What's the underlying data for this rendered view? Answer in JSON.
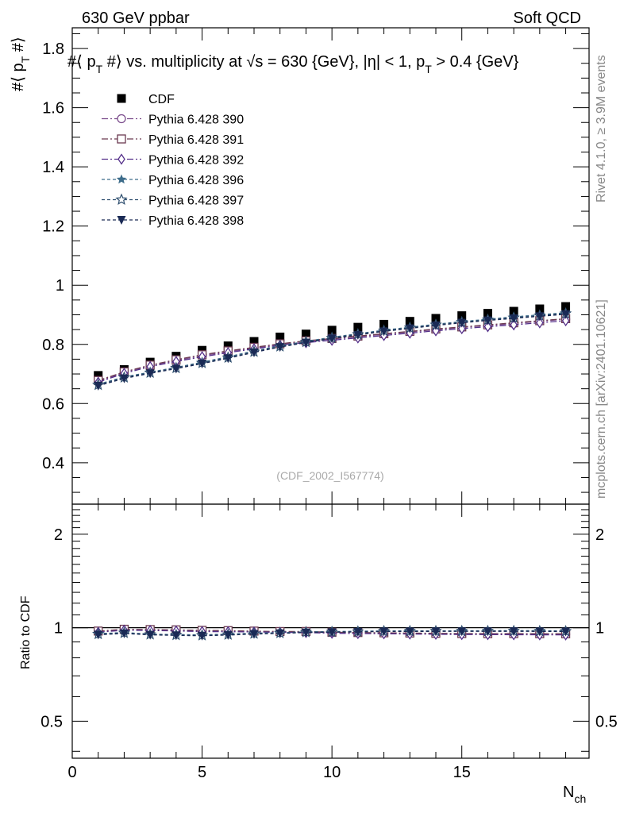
{
  "header": {
    "left": "630 GeV ppbar",
    "right": "Soft QCD"
  },
  "side_text": {
    "rivet": "Rivet 4.1.0, ≥ 3.9M events",
    "mcplots": "mcplots.cern.ch [arXiv:2401.10621]"
  },
  "chart_data": [
    {
      "panel": "main",
      "type": "scatter",
      "title_parts": {
        "a": "#⟨ p",
        "a_sub": "T",
        "b": " #⟩ vs. multiplicity at ",
        "sqrt": "√",
        "c": "s = 630 {GeV}, |η| < 1, p",
        "c_sub": "T",
        "d": " > 0.4 {GeV}"
      },
      "ylabel_parts": {
        "a": "#⟨ p",
        "sub": "T",
        "b": " #⟩"
      },
      "xlim": [
        0,
        19.9
      ],
      "ylim": [
        0.26,
        1.87
      ],
      "yticks": [
        0.4,
        0.6,
        0.8,
        1.0,
        1.2,
        1.4,
        1.6,
        1.8
      ],
      "ytick_labels": [
        "0.4",
        "0.6",
        "0.8",
        "1",
        "1.2",
        "1.4",
        "1.6",
        "1.8"
      ],
      "watermark": "(CDF_2002_I567774)",
      "x": [
        1,
        2,
        3,
        4,
        5,
        6,
        7,
        8,
        9,
        10,
        11,
        12,
        13,
        14,
        15,
        16,
        17,
        18,
        19
      ],
      "series": [
        {
          "name": "CDF",
          "marker": "square-filled",
          "color": "#000000",
          "dash": "none",
          "values": [
            0.695,
            0.715,
            0.74,
            0.76,
            0.78,
            0.795,
            0.81,
            0.825,
            0.835,
            0.848,
            0.858,
            0.868,
            0.878,
            0.888,
            0.897,
            0.905,
            0.912,
            0.92,
            0.928
          ]
        },
        {
          "name": "Pythia 6.428 390",
          "marker": "circle-open",
          "color": "#7b4c8c",
          "dash": "8,3,2,3",
          "values": [
            0.675,
            0.705,
            0.728,
            0.745,
            0.762,
            0.775,
            0.788,
            0.8,
            0.81,
            0.818,
            0.826,
            0.834,
            0.842,
            0.85,
            0.857,
            0.864,
            0.87,
            0.878,
            0.885
          ]
        },
        {
          "name": "Pythia 6.428 391",
          "marker": "square-open",
          "color": "#6b3a50",
          "dash": "8,3,2,3",
          "values": [
            0.678,
            0.707,
            0.73,
            0.748,
            0.765,
            0.778,
            0.79,
            0.802,
            0.812,
            0.82,
            0.828,
            0.836,
            0.844,
            0.852,
            0.859,
            0.866,
            0.873,
            0.88,
            0.887
          ]
        },
        {
          "name": "Pythia 6.428 392",
          "marker": "diamond-open",
          "color": "#55308a",
          "dash": "8,3,2,3",
          "values": [
            0.672,
            0.702,
            0.725,
            0.742,
            0.758,
            0.772,
            0.785,
            0.797,
            0.806,
            0.814,
            0.822,
            0.83,
            0.838,
            0.846,
            0.853,
            0.86,
            0.866,
            0.873,
            0.88
          ]
        },
        {
          "name": "Pythia 6.428 396",
          "marker": "star-filled",
          "color": "#3d6c8a",
          "dash": "4,3",
          "values": [
            0.665,
            0.69,
            0.706,
            0.722,
            0.74,
            0.758,
            0.778,
            0.795,
            0.81,
            0.824,
            0.836,
            0.848,
            0.858,
            0.868,
            0.877,
            0.885,
            0.893,
            0.9,
            0.907
          ]
        },
        {
          "name": "Pythia 6.428 397",
          "marker": "star-open",
          "color": "#2f4f6f",
          "dash": "4,3",
          "values": [
            0.663,
            0.688,
            0.704,
            0.72,
            0.737,
            0.755,
            0.775,
            0.793,
            0.808,
            0.822,
            0.834,
            0.846,
            0.856,
            0.866,
            0.875,
            0.883,
            0.89,
            0.897,
            0.904
          ]
        },
        {
          "name": "Pythia 6.428 398",
          "marker": "triangle-down-filled",
          "color": "#1a2a55",
          "dash": "4,3",
          "values": [
            0.66,
            0.685,
            0.702,
            0.718,
            0.735,
            0.753,
            0.773,
            0.791,
            0.806,
            0.82,
            0.832,
            0.844,
            0.854,
            0.864,
            0.873,
            0.881,
            0.888,
            0.895,
            0.902
          ]
        }
      ]
    },
    {
      "panel": "ratio",
      "type": "scatter",
      "ylabel": "Ratio to CDF",
      "ylim": [
        0.38,
        2.5
      ],
      "yscale": "log",
      "yticks": [
        0.5,
        1,
        2
      ],
      "ytick_labels": [
        "0.5",
        "1",
        "2"
      ],
      "xlabel": "N",
      "xlabel_sub": "ch",
      "xticks": [
        0,
        5,
        10,
        15
      ],
      "xtick_labels": [
        "0",
        "5",
        "10",
        "15"
      ],
      "reference": 1
    }
  ]
}
